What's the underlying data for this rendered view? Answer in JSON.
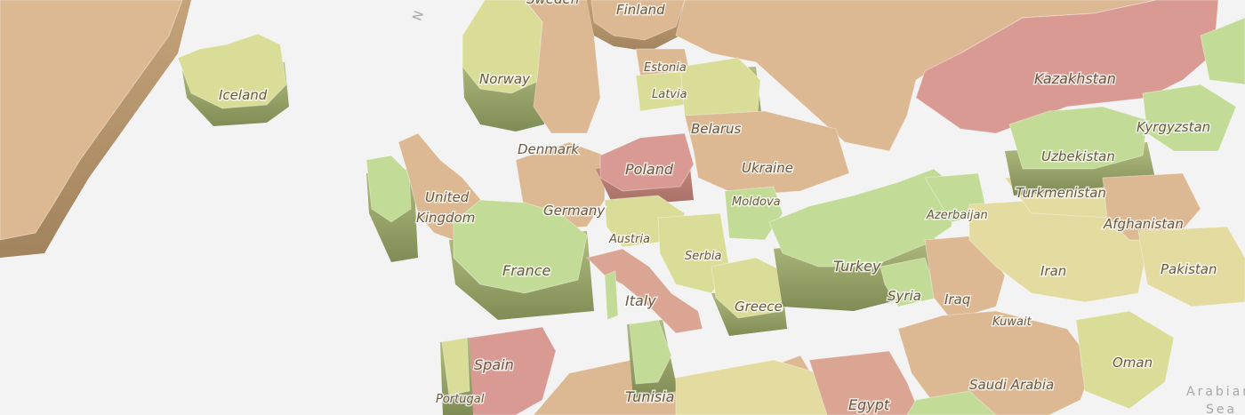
{
  "map": {
    "type": "3d-extruded-choropleth",
    "background_color": "#f3f3f3",
    "palette": {
      "green": "#c2dc98",
      "yellow_green": "#d9dd98",
      "yellow": "#e3dba0",
      "tan": "#dcb893",
      "salmon": "#dba594",
      "red": "#d99a94",
      "extrusion_dark": "#8c9a60"
    },
    "countries": [
      {
        "name": "Sweden",
        "shade": "tan"
      },
      {
        "name": "Finland",
        "shade": "tan"
      },
      {
        "name": "Norway",
        "shade": "yellow_green"
      },
      {
        "name": "Iceland",
        "shade": "yellow_green"
      },
      {
        "name": "Estonia",
        "shade": "tan"
      },
      {
        "name": "Latvia",
        "shade": "yellow_green"
      },
      {
        "name": "Kazakhstan",
        "shade": "salmon"
      },
      {
        "name": "Belarus",
        "shade": "yellow_green"
      },
      {
        "name": "Kyrgyzstan",
        "shade": "green"
      },
      {
        "name": "Denmark",
        "shade": "tan"
      },
      {
        "name": "Poland",
        "shade": "red"
      },
      {
        "name": "Ukraine",
        "shade": "tan"
      },
      {
        "name": "Uzbekistan",
        "shade": "green"
      },
      {
        "name": "United Kingdom",
        "shade": "tan"
      },
      {
        "name": "Germany",
        "shade": "tan"
      },
      {
        "name": "Moldova",
        "shade": "tan"
      },
      {
        "name": "Turkmenistan",
        "shade": "yellow"
      },
      {
        "name": "Azerbaijan",
        "shade": "green"
      },
      {
        "name": "Afghanistan",
        "shade": "tan"
      },
      {
        "name": "Austria",
        "shade": "yellow_green"
      },
      {
        "name": "Serbia",
        "shade": "yellow_green"
      },
      {
        "name": "France",
        "shade": "yellow_green"
      },
      {
        "name": "Turkey",
        "shade": "green"
      },
      {
        "name": "Iran",
        "shade": "yellow"
      },
      {
        "name": "Pakistan",
        "shade": "yellow"
      },
      {
        "name": "Italy",
        "shade": "salmon"
      },
      {
        "name": "Syria",
        "shade": "green"
      },
      {
        "name": "Iraq",
        "shade": "tan"
      },
      {
        "name": "Greece",
        "shade": "yellow_green"
      },
      {
        "name": "Kuwait",
        "shade": "tan"
      },
      {
        "name": "Spain",
        "shade": "red"
      },
      {
        "name": "Oman",
        "shade": "yellow_green"
      },
      {
        "name": "Saudi Arabia",
        "shade": "tan"
      },
      {
        "name": "Portugal",
        "shade": "yellow_green"
      },
      {
        "name": "Tunisia",
        "shade": "green"
      },
      {
        "name": "Egypt",
        "shade": "salmon"
      }
    ],
    "sea_labels": [
      "Arabian Sea"
    ],
    "other_labels": [
      "N"
    ]
  }
}
